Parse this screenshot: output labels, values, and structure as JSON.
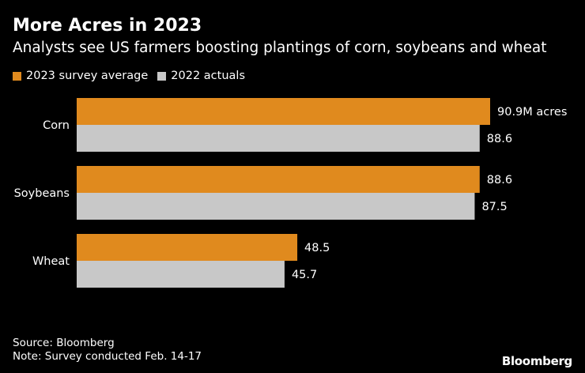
{
  "header": {
    "title": "More Acres in 2023",
    "subtitle": "Analysts see US farmers boosting plantings of corn, soybeans and wheat"
  },
  "legend": [
    {
      "label": "2023 survey average",
      "color": "#e08a1e"
    },
    {
      "label": "2022 actuals",
      "color": "#c8c8c8"
    }
  ],
  "chart_data": {
    "type": "bar",
    "orientation": "horizontal",
    "title": "More Acres in 2023",
    "subtitle": "Analysts see US farmers boosting plantings of corn, soybeans and wheat",
    "categories": [
      "Corn",
      "Soybeans",
      "Wheat"
    ],
    "unit_label_first": "M acres",
    "xlim": [
      0,
      95
    ],
    "grid": false,
    "legend_position": "top-left",
    "series": [
      {
        "name": "2023 survey average",
        "color": "#e08a1e",
        "values": [
          90.9,
          88.6,
          48.5
        ],
        "labels": [
          "90.9M acres",
          "88.6",
          "48.5"
        ]
      },
      {
        "name": "2022 actuals",
        "color": "#c8c8c8",
        "values": [
          88.6,
          87.5,
          45.7
        ],
        "labels": [
          "88.6",
          "87.5",
          "45.7"
        ]
      }
    ]
  },
  "footer": {
    "source": "Source: Bloomberg",
    "note": "Note: Survey conducted Feb. 14-17",
    "brand": "Bloomberg"
  }
}
